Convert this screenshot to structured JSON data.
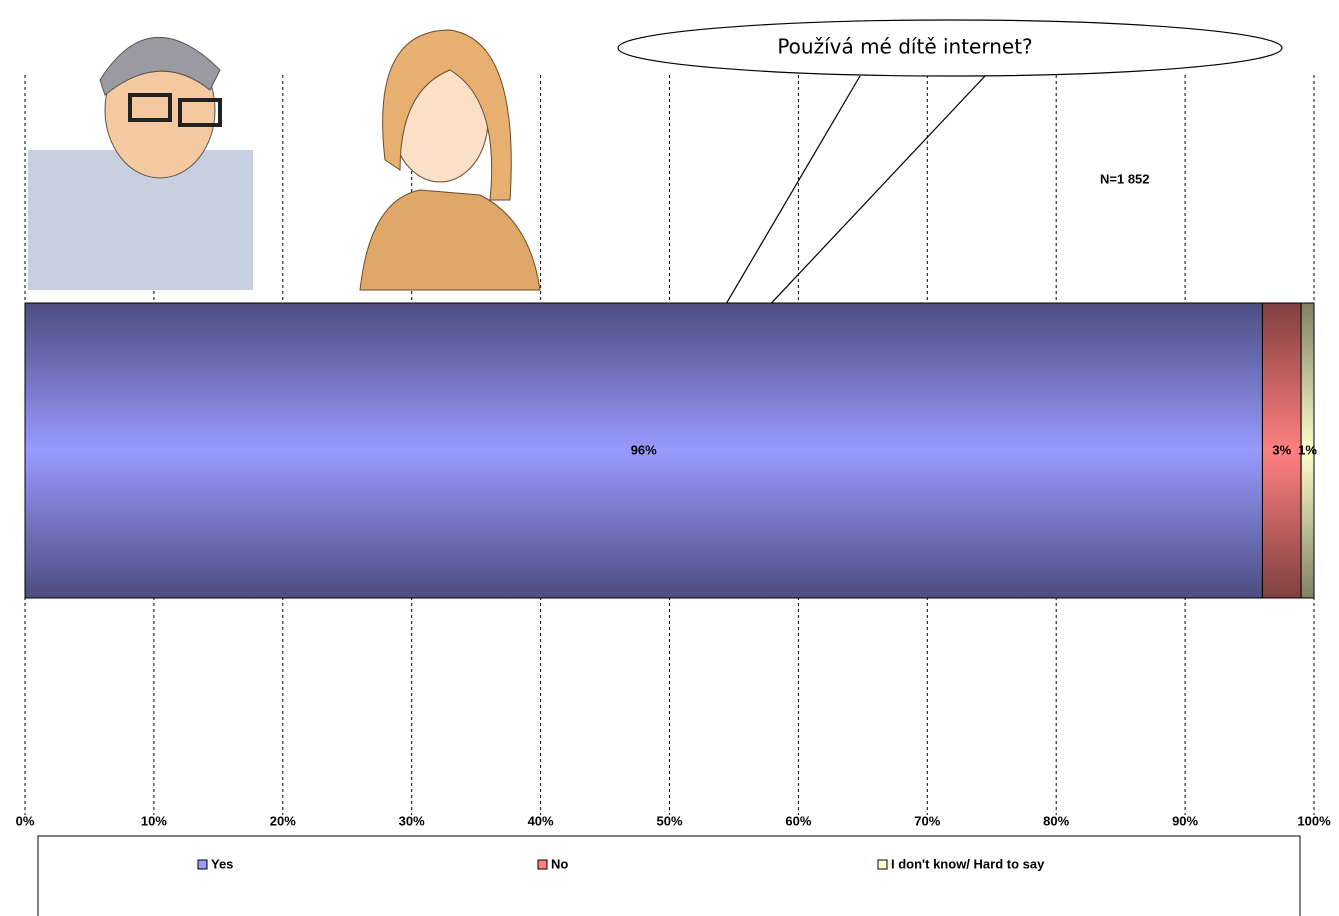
{
  "chart_data": {
    "type": "stacked-bar",
    "annotations": [
      "Používá mé dítě internet?",
      "N=1 852"
    ],
    "series": [
      {
        "name": "Yes",
        "color": "#9999ff",
        "values": [
          96
        ],
        "value_labels": [
          "96%"
        ]
      },
      {
        "name": "No",
        "color": "#ff8080",
        "values": [
          3
        ],
        "value_labels": [
          "3%"
        ]
      },
      {
        "name": "I don't know/ Hard to say",
        "color": "#ffffcc",
        "values": [
          1
        ],
        "value_labels": [
          "1%"
        ]
      }
    ],
    "xlim": [
      0,
      100
    ],
    "xticks": [
      {
        "value": 0,
        "label": "0%"
      },
      {
        "value": 10,
        "label": "10%"
      },
      {
        "value": 20,
        "label": "20%"
      },
      {
        "value": 30,
        "label": "30%"
      },
      {
        "value": 40,
        "label": "40%"
      },
      {
        "value": 50,
        "label": "50%"
      },
      {
        "value": 60,
        "label": "60%"
      },
      {
        "value": 70,
        "label": "70%"
      },
      {
        "value": 80,
        "label": "80%"
      },
      {
        "value": 90,
        "label": "90%"
      },
      {
        "value": 100,
        "label": "100%"
      }
    ],
    "grid": true,
    "legend": "bottom"
  }
}
